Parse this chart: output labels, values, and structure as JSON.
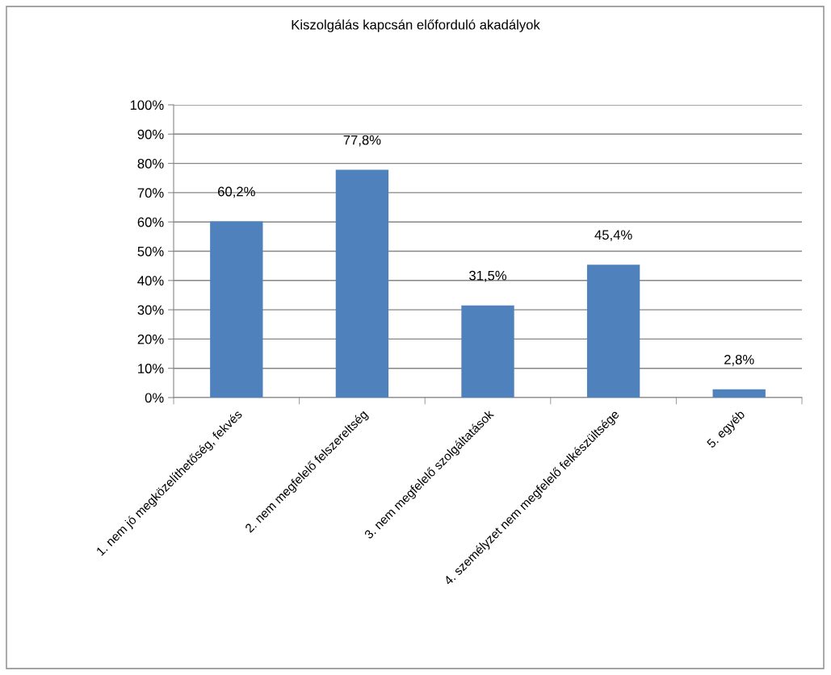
{
  "chart_data": {
    "type": "bar",
    "title": "Kiszolgálás kapcsán előforduló akadályok",
    "categories": [
      "1. nem jó megközelíthetőség, fekvés",
      "2. nem megfelelő felszereltség",
      "3. nem megfelelő szolgáltatások",
      "4. személyzet nem megfelelő felkészültsége",
      "5. egyéb"
    ],
    "values": [
      60.2,
      77.8,
      31.5,
      45.4,
      2.8
    ],
    "value_labels": [
      "60,2%",
      "77,8%",
      "31,5%",
      "45,4%",
      "2,8%"
    ],
    "color": "#4f81bd",
    "ylim": [
      0,
      100
    ],
    "yticks": [
      {
        "value": 0,
        "label": "0%"
      },
      {
        "value": 10,
        "label": "10%"
      },
      {
        "value": 20,
        "label": "20%"
      },
      {
        "value": 30,
        "label": "30%"
      },
      {
        "value": 40,
        "label": "40%"
      },
      {
        "value": 50,
        "label": "50%"
      },
      {
        "value": 60,
        "label": "60%"
      },
      {
        "value": 70,
        "label": "70%"
      },
      {
        "value": 80,
        "label": "80%"
      },
      {
        "value": 90,
        "label": "90%"
      },
      {
        "value": 100,
        "label": "100%"
      }
    ],
    "grid": "y",
    "legend": false
  }
}
